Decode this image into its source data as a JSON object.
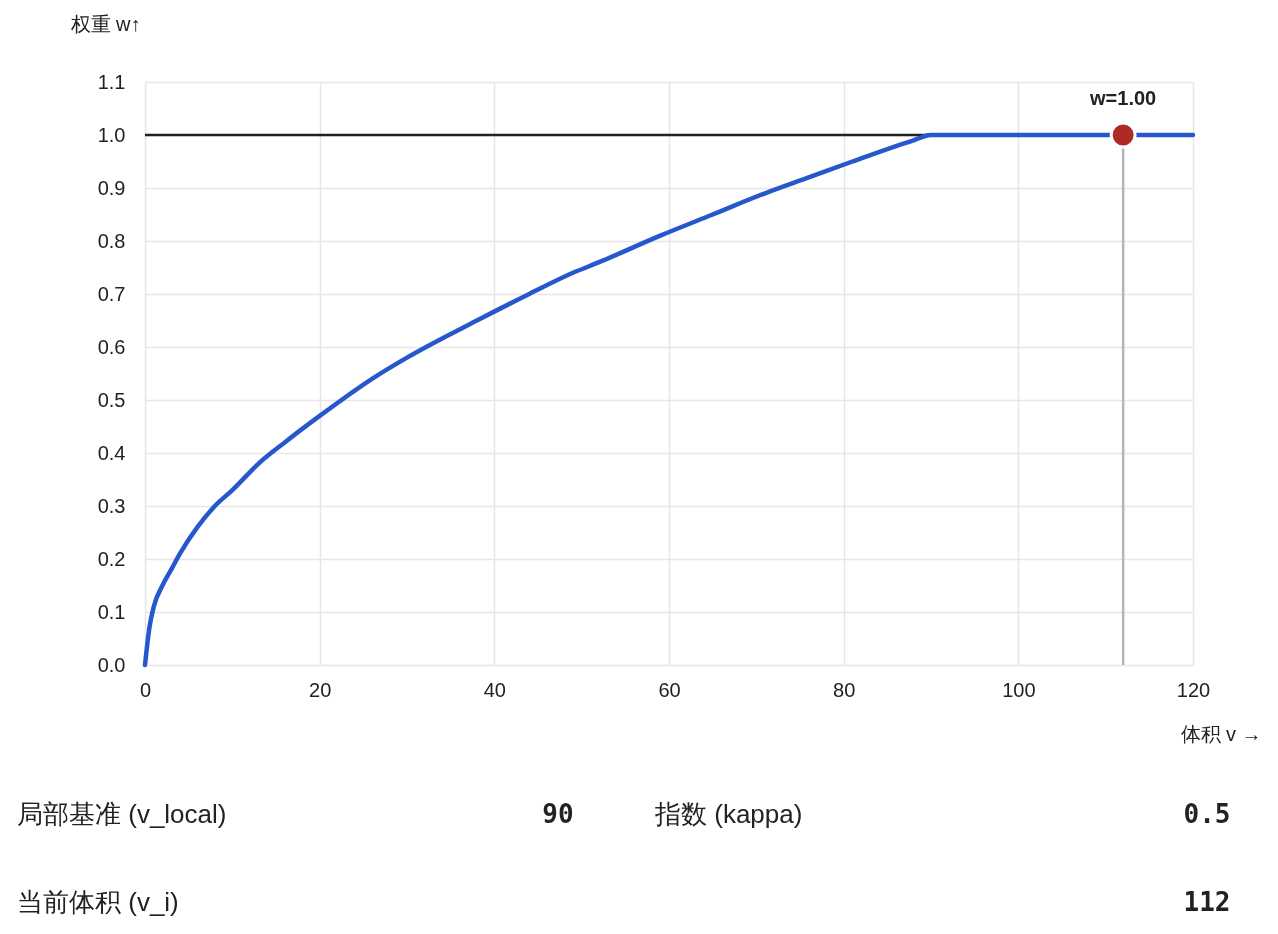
{
  "chart_data": {
    "type": "line",
    "xlabel": "体积 v →",
    "ylabel": "权重 w↑",
    "xlim": [
      0,
      120
    ],
    "xticks": [
      0,
      20,
      40,
      60,
      80,
      100,
      120
    ],
    "ylim": [
      0,
      1.1
    ],
    "yticks": [
      {
        "value": 0,
        "label": "0.0"
      },
      0.1,
      0.2,
      0.3,
      0.4,
      0.5,
      0.6,
      0.7,
      0.8,
      0.9,
      {
        "value": 1,
        "label": "1.0"
      },
      1.1
    ],
    "grid": true,
    "series": [
      {
        "color": "#2757cc",
        "x": [
          0,
          0.5,
          1,
          2,
          3,
          4,
          6,
          8,
          10,
          13,
          16,
          20,
          26,
          30,
          38,
          44,
          49,
          52,
          59,
          65,
          71,
          76,
          81,
          88,
          90,
          100,
          110,
          120
        ],
        "values": [
          0,
          0.07,
          0.11,
          0.15,
          0.18,
          0.21,
          0.26,
          0.3,
          0.33,
          0.38,
          0.42,
          0.47,
          0.54,
          0.58,
          0.65,
          0.7,
          0.74,
          0.76,
          0.81,
          0.85,
          0.89,
          0.92,
          0.95,
          0.99,
          1.0,
          1.0,
          1.0,
          1.0
        ]
      },
      {
        "type": "lollipop",
        "color": "#b02a24",
        "x": [
          112
        ],
        "values": [
          1.0
        ]
      }
    ],
    "ref_lines": [
      {
        "axis": "y",
        "value": 1.0,
        "color": "#222222"
      }
    ],
    "annotations": [
      {
        "text": "w=1.00",
        "x": 112,
        "y": 1.0
      },
      "局部基准 (v_local)",
      "90",
      "指数 (kappa)",
      "0.5",
      "当前体积 (v_i)",
      "112"
    ]
  }
}
